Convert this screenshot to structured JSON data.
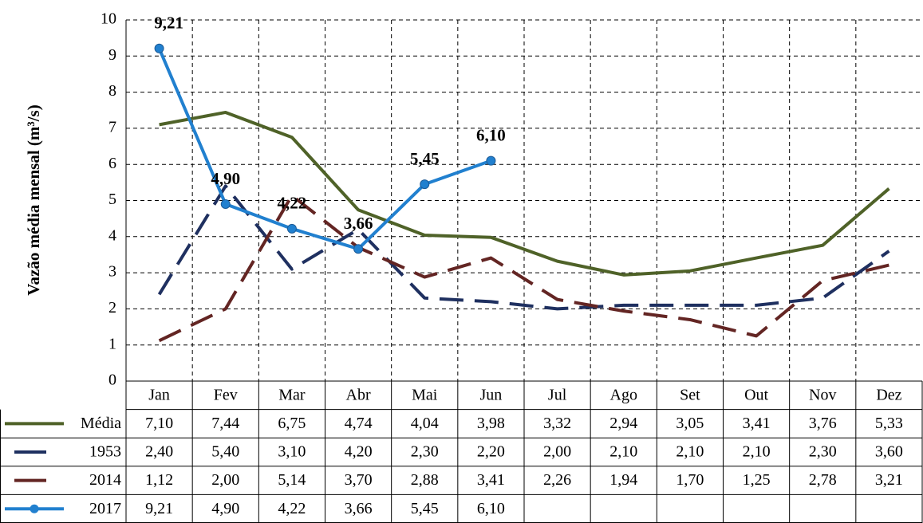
{
  "chart_data": {
    "type": "line",
    "y_label": "Vazão média mensal (m³/s)",
    "categories": [
      "Jan",
      "Fev",
      "Mar",
      "Abr",
      "Mai",
      "Jun",
      "Jul",
      "Ago",
      "Set",
      "Out",
      "Nov",
      "Dez"
    ],
    "ylim": [
      0,
      10
    ],
    "yticks": [
      0,
      1,
      2,
      3,
      4,
      5,
      6,
      7,
      8,
      9,
      10
    ],
    "grid": true,
    "series": [
      {
        "name": "Média",
        "color": "#4f6228",
        "dashed": false,
        "markers": false,
        "values": [
          7.1,
          7.44,
          6.75,
          4.74,
          4.04,
          3.98,
          3.32,
          2.94,
          3.05,
          3.41,
          3.76,
          5.33
        ],
        "value_labels": [
          "7,10",
          "7,44",
          "6,75",
          "4,74",
          "4,04",
          "3,98",
          "3,32",
          "2,94",
          "3,05",
          "3,41",
          "3,76",
          "5,33"
        ]
      },
      {
        "name": "1953",
        "color": "#1f3060",
        "dashed": true,
        "markers": false,
        "values": [
          2.4,
          5.4,
          3.1,
          4.2,
          2.3,
          2.2,
          2.0,
          2.1,
          2.1,
          2.1,
          2.3,
          3.6
        ],
        "value_labels": [
          "2,40",
          "5,40",
          "3,10",
          "4,20",
          "2,30",
          "2,20",
          "2,00",
          "2,10",
          "2,10",
          "2,10",
          "2,30",
          "3,60"
        ]
      },
      {
        "name": "2014",
        "color": "#632523",
        "dashed": true,
        "markers": false,
        "values": [
          1.12,
          2.0,
          5.14,
          3.7,
          2.88,
          3.41,
          2.26,
          1.94,
          1.7,
          1.25,
          2.78,
          3.21
        ],
        "value_labels": [
          "1,12",
          "2,00",
          "5,14",
          "3,70",
          "2,88",
          "3,41",
          "2,26",
          "1,94",
          "1,70",
          "1,25",
          "2,78",
          "3,21"
        ]
      },
      {
        "name": "2017",
        "color": "#2180cf",
        "dashed": false,
        "markers": true,
        "point_labels": true,
        "values": [
          9.21,
          4.9,
          4.22,
          3.66,
          5.45,
          6.1,
          null,
          null,
          null,
          null,
          null,
          null
        ],
        "value_labels": [
          "9,21",
          "4,90",
          "4,22",
          "3,66",
          "5,45",
          "6,10",
          null,
          null,
          null,
          null,
          null,
          null
        ]
      }
    ]
  }
}
